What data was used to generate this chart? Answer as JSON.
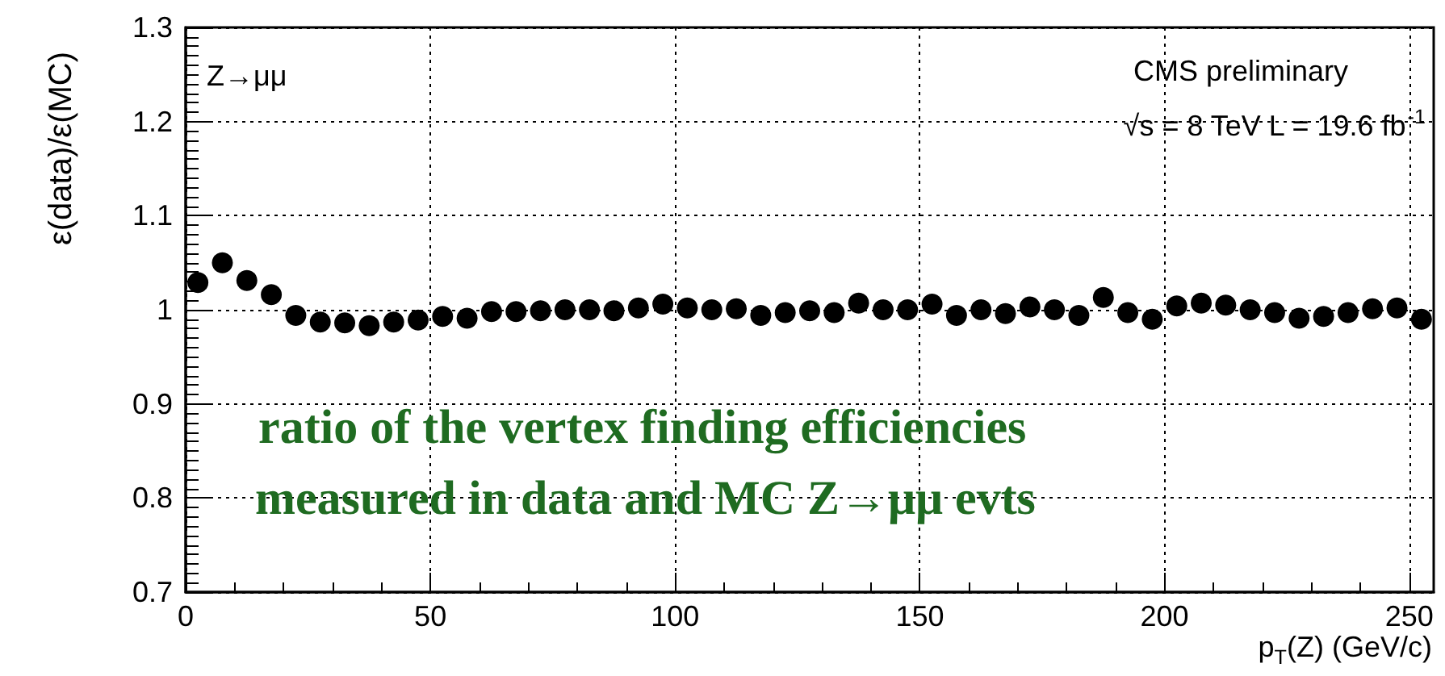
{
  "chart_data": {
    "type": "scatter",
    "xlabel": "p$_{T}$(Z) (GeV/c)",
    "ylabel": "ε(data)/ε(MC)",
    "x": [
      2.5,
      7.5,
      12.5,
      17.5,
      22.5,
      27.5,
      32.5,
      37.5,
      42.5,
      47.5,
      52.5,
      57.5,
      62.5,
      67.5,
      72.5,
      77.5,
      82.5,
      87.5,
      92.5,
      97.5,
      102.5,
      107.5,
      112.5,
      117.5,
      122.5,
      127.5,
      132.5,
      137.5,
      142.5,
      147.5,
      152.5,
      157.5,
      162.5,
      167.5,
      172.5,
      177.5,
      182.5,
      187.5,
      192.5,
      197.5,
      202.5,
      207.5,
      212.5,
      217.5,
      222.5,
      227.5,
      232.5,
      237.5,
      242.5,
      247.5,
      252.5
    ],
    "values": [
      1.029,
      1.05,
      1.031,
      1.016,
      0.994,
      0.987,
      0.986,
      0.983,
      0.987,
      0.989,
      0.993,
      0.991,
      0.998,
      0.998,
      0.999,
      1.0,
      1.0,
      0.999,
      1.002,
      1.006,
      1.002,
      1.0,
      1.001,
      0.994,
      0.997,
      0.999,
      0.997,
      1.007,
      1.0,
      1.0,
      1.006,
      0.994,
      1.0,
      0.996,
      1.003,
      1.0,
      0.994,
      1.013,
      0.997,
      0.99,
      1.004,
      1.007,
      1.005,
      1.0,
      0.997,
      0.991,
      0.993,
      0.997,
      1.001,
      1.002,
      0.99
    ],
    "color": "#000000",
    "marker": "circle",
    "xlim": [
      0,
      255
    ],
    "xticks": [
      0,
      50,
      100,
      150,
      200,
      250
    ],
    "ylim": [
      0.7,
      1.3
    ],
    "yticks": [
      0.7,
      0.8,
      0.9,
      1,
      1.1,
      1.2,
      1.3
    ],
    "grid": true,
    "annotations": [
      "Z→μμ",
      "CMS preliminary",
      "√s = 8 TeV L = 19.6 fb$^{-1}$",
      "ratio of the vertex finding efficiencies",
      "measured in data and MC Z→μμ evts"
    ]
  }
}
